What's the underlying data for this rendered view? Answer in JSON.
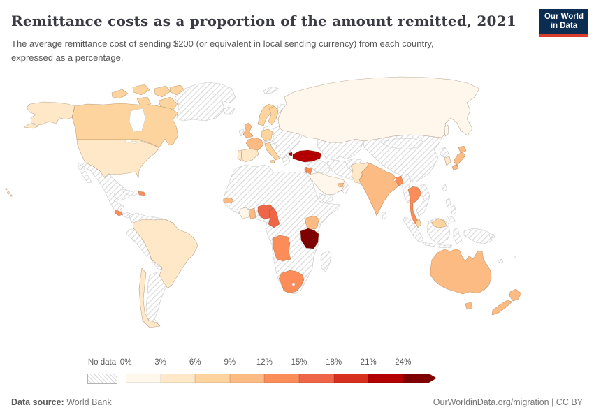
{
  "header": {
    "title": "Remittance costs as a proportion of the amount remitted, 2021",
    "subtitle_line1": "The average remittance cost of sending $200 (or equivalent in local sending currency) from each country,",
    "subtitle_line2": "expressed as a percentage.",
    "logo": {
      "line1": "Our World",
      "line2": "in Data",
      "bg": "#0c2d52",
      "stripe": "#d73c2c"
    }
  },
  "legend": {
    "no_data_label": "No data",
    "tick_labels": [
      "0%",
      "3%",
      "6%",
      "9%",
      "12%",
      "15%",
      "18%",
      "21%",
      "24%"
    ],
    "colors": [
      "#fff7ec",
      "#fee8c8",
      "#fdd49e",
      "#fdbb84",
      "#fc8d59",
      "#ef6548",
      "#d7301f",
      "#b30000",
      "#7f0000"
    ]
  },
  "footer": {
    "source_label": "Data source:",
    "source_value": " World Bank",
    "credit": "OurWorldinData.org/migration | CC BY"
  },
  "map": {
    "fills": {
      "russia": "#fff7ec",
      "saudi_arabia": "#fff7ec",
      "cote_divoire": "#fff7ec",
      "usa": "#fee8c8",
      "brazil": "#fee8c8",
      "chile": "#fee8c8",
      "spain": "#fee8c8",
      "portugal": "#fee8c8",
      "south_korea": "#fee8c8",
      "pakistan": "#fee8c8",
      "canada": "#fdd49e",
      "germany": "#fdd49e",
      "norway": "#fdd49e",
      "sweden": "#fdd49e",
      "italy": "#fdd49e",
      "malaysia": "#fdd49e",
      "uk": "#fdbb84",
      "france": "#fdbb84",
      "india": "#fdbb84",
      "japan": "#fdbb84",
      "australia": "#fdbb84",
      "new_zealand": "#fdbb84",
      "kenya": "#fdbb84",
      "senegal": "#fdbb84",
      "ghana": "#fdbb84",
      "uae": "#fdbb84",
      "thailand": "#fc8d59",
      "angola": "#fc8d59",
      "south_africa": "#fc8d59",
      "costa_rica": "#fc8d59",
      "israel": "#fc8d59",
      "jordan": "#fc8d59",
      "bangladesh": "#fc8d59",
      "dominican_republic": "#fc8d59",
      "nigeria": "#ef6548",
      "cameroon": "#ef6548",
      "turkey": "#b30000",
      "tanzania": "#7f0000"
    }
  },
  "chart_data": {
    "type": "choropleth_map",
    "title": "Remittance costs as a proportion of the amount remitted, 2021",
    "subtitle": "The average remittance cost of sending $200 (or equivalent in local sending currency) from each country, expressed as a percentage.",
    "year": "2021",
    "unit": "%",
    "legend_position": "bottom",
    "legend_bins": [
      {
        "range": "0-3%",
        "color": "#fff7ec"
      },
      {
        "range": "3-6%",
        "color": "#fee8c8"
      },
      {
        "range": "6-9%",
        "color": "#fdd49e"
      },
      {
        "range": "9-12%",
        "color": "#fdbb84"
      },
      {
        "range": "12-15%",
        "color": "#fc8d59"
      },
      {
        "range": "15-18%",
        "color": "#ef6548"
      },
      {
        "range": "18-21%",
        "color": "#d7301f"
      },
      {
        "range": "21-24%",
        "color": "#b30000"
      },
      {
        "range": ">24%",
        "color": "#7f0000"
      },
      {
        "range": "No data",
        "color": "hatched"
      }
    ],
    "countries": [
      {
        "country": "Russia",
        "bin": "0-3%"
      },
      {
        "country": "Saudi Arabia",
        "bin": "0-3%"
      },
      {
        "country": "Cote d'Ivoire",
        "bin": "0-3%"
      },
      {
        "country": "United States",
        "bin": "3-6%"
      },
      {
        "country": "Brazil",
        "bin": "3-6%"
      },
      {
        "country": "Chile",
        "bin": "3-6%"
      },
      {
        "country": "Spain",
        "bin": "3-6%"
      },
      {
        "country": "Portugal",
        "bin": "3-6%"
      },
      {
        "country": "South Korea",
        "bin": "3-6%"
      },
      {
        "country": "Pakistan",
        "bin": "3-6%"
      },
      {
        "country": "Canada",
        "bin": "6-9%"
      },
      {
        "country": "Germany",
        "bin": "6-9%"
      },
      {
        "country": "Norway",
        "bin": "6-9%"
      },
      {
        "country": "Sweden",
        "bin": "6-9%"
      },
      {
        "country": "Italy",
        "bin": "6-9%"
      },
      {
        "country": "Malaysia",
        "bin": "6-9%"
      },
      {
        "country": "United Kingdom",
        "bin": "9-12%"
      },
      {
        "country": "France",
        "bin": "9-12%"
      },
      {
        "country": "India",
        "bin": "9-12%"
      },
      {
        "country": "Japan",
        "bin": "9-12%"
      },
      {
        "country": "Australia",
        "bin": "9-12%"
      },
      {
        "country": "New Zealand",
        "bin": "9-12%"
      },
      {
        "country": "Kenya",
        "bin": "9-12%"
      },
      {
        "country": "Senegal",
        "bin": "9-12%"
      },
      {
        "country": "Ghana",
        "bin": "9-12%"
      },
      {
        "country": "United Arab Emirates",
        "bin": "9-12%"
      },
      {
        "country": "Thailand",
        "bin": "12-15%"
      },
      {
        "country": "Angola",
        "bin": "12-15%"
      },
      {
        "country": "South Africa",
        "bin": "12-15%"
      },
      {
        "country": "Costa Rica",
        "bin": "12-15%"
      },
      {
        "country": "Israel",
        "bin": "12-15%"
      },
      {
        "country": "Jordan",
        "bin": "12-15%"
      },
      {
        "country": "Bangladesh",
        "bin": "12-15%"
      },
      {
        "country": "Dominican Republic",
        "bin": "12-15%"
      },
      {
        "country": "Nigeria",
        "bin": "15-18%"
      },
      {
        "country": "Cameroon",
        "bin": "15-18%"
      },
      {
        "country": "Turkey",
        "bin": "21-24%"
      },
      {
        "country": "Tanzania",
        "bin": ">24%"
      }
    ]
  }
}
